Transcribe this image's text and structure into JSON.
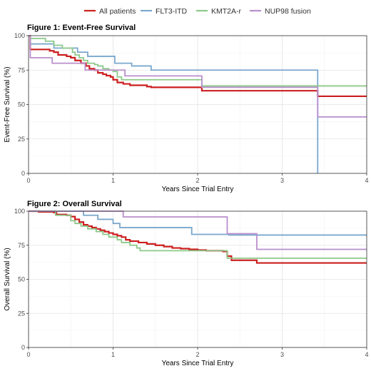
{
  "legend": {
    "placement": "top",
    "items": [
      {
        "label": "All patients",
        "color": "#cc1f1f"
      },
      {
        "label": "FLT3-ITD",
        "color": "#7ba7cc"
      },
      {
        "label": "KMT2A-r",
        "color": "#8cc98a"
      },
      {
        "label": "NUP98 fusion",
        "color": "#b98fcc"
      }
    ]
  },
  "chart_data": [
    {
      "type": "line",
      "step": true,
      "title": "Figure 1: Event-Free Survival",
      "xlabel": "Years Since Trial Entry",
      "ylabel": "Event-Free Survival (%)",
      "xlim": [
        0,
        4
      ],
      "ylim": [
        0,
        100
      ],
      "xticks": [
        0,
        1,
        2,
        3,
        4
      ],
      "yticks": [
        0,
        25,
        50,
        75,
        100
      ],
      "grid": true,
      "series": [
        {
          "name": "All patients",
          "color": "#cc1f1f",
          "points": [
            [
              0,
              100
            ],
            [
              0.02,
              90
            ],
            [
              0.25,
              89
            ],
            [
              0.3,
              88
            ],
            [
              0.35,
              86
            ],
            [
              0.45,
              85
            ],
            [
              0.5,
              84
            ],
            [
              0.55,
              82
            ],
            [
              0.62,
              80
            ],
            [
              0.68,
              78
            ],
            [
              0.72,
              76
            ],
            [
              0.78,
              75
            ],
            [
              0.82,
              73
            ],
            [
              0.88,
              72
            ],
            [
              0.92,
              71
            ],
            [
              0.97,
              70
            ],
            [
              1.0,
              68
            ],
            [
              1.05,
              66
            ],
            [
              1.12,
              65
            ],
            [
              1.2,
              64
            ],
            [
              1.4,
              63
            ],
            [
              1.45,
              62.5
            ],
            [
              2.03,
              62.5
            ],
            [
              2.05,
              60
            ],
            [
              3.4,
              60
            ],
            [
              3.42,
              56
            ],
            [
              4,
              56
            ]
          ]
        },
        {
          "name": "FLT3-ITD",
          "color": "#7ba7cc",
          "points": [
            [
              0,
              100
            ],
            [
              0.02,
              94
            ],
            [
              0.28,
              94
            ],
            [
              0.3,
              91
            ],
            [
              0.55,
              91
            ],
            [
              0.58,
              88
            ],
            [
              0.68,
              88
            ],
            [
              0.7,
              85
            ],
            [
              1.0,
              85
            ],
            [
              1.02,
              80
            ],
            [
              1.2,
              80
            ],
            [
              1.22,
              78
            ],
            [
              1.43,
              78
            ],
            [
              1.45,
              75
            ],
            [
              3.4,
              75
            ],
            [
              3.42,
              0
            ]
          ]
        },
        {
          "name": "KMT2A-r",
          "color": "#8cc98a",
          "points": [
            [
              0,
              100
            ],
            [
              0.02,
              98
            ],
            [
              0.18,
              98
            ],
            [
              0.2,
              96
            ],
            [
              0.28,
              96
            ],
            [
              0.3,
              93
            ],
            [
              0.38,
              93
            ],
            [
              0.4,
              91
            ],
            [
              0.5,
              91
            ],
            [
              0.52,
              88
            ],
            [
              0.55,
              86
            ],
            [
              0.6,
              84
            ],
            [
              0.65,
              82
            ],
            [
              0.7,
              80
            ],
            [
              0.78,
              79
            ],
            [
              0.82,
              78
            ],
            [
              0.88,
              76
            ],
            [
              0.95,
              75
            ],
            [
              1.0,
              74
            ],
            [
              1.05,
              70
            ],
            [
              1.1,
              68
            ],
            [
              2.03,
              68
            ],
            [
              2.05,
              63.5
            ],
            [
              4,
              63.5
            ]
          ]
        },
        {
          "name": "NUP98 fusion",
          "color": "#b98fcc",
          "points": [
            [
              0,
              100
            ],
            [
              0.02,
              84
            ],
            [
              0.26,
              84
            ],
            [
              0.28,
              80
            ],
            [
              0.65,
              80
            ],
            [
              0.67,
              75
            ],
            [
              1.12,
              75
            ],
            [
              1.14,
              70.8
            ],
            [
              2.03,
              70.8
            ],
            [
              2.05,
              62.5
            ],
            [
              3.4,
              62.5
            ],
            [
              3.42,
              41
            ],
            [
              4,
              41
            ]
          ]
        }
      ]
    },
    {
      "type": "line",
      "step": true,
      "title": "Figure 2: Overall Survival",
      "xlabel": "Years Since Trial Entry",
      "ylabel": "Overall Survival (%)",
      "xlim": [
        0,
        4
      ],
      "ylim": [
        0,
        100
      ],
      "xticks": [
        0,
        1,
        2,
        3,
        4
      ],
      "yticks": [
        0,
        25,
        50,
        75,
        100
      ],
      "grid": true,
      "series": [
        {
          "name": "All patients",
          "color": "#cc1f1f",
          "points": [
            [
              0,
              100
            ],
            [
              0.1,
              100
            ],
            [
              0.12,
              99.5
            ],
            [
              0.3,
              99
            ],
            [
              0.33,
              97.5
            ],
            [
              0.45,
              97
            ],
            [
              0.5,
              96
            ],
            [
              0.55,
              94
            ],
            [
              0.6,
              92
            ],
            [
              0.65,
              90
            ],
            [
              0.7,
              89
            ],
            [
              0.75,
              88
            ],
            [
              0.8,
              87
            ],
            [
              0.85,
              86
            ],
            [
              0.9,
              85
            ],
            [
              0.95,
              84
            ],
            [
              1.0,
              83
            ],
            [
              1.05,
              82
            ],
            [
              1.1,
              81
            ],
            [
              1.15,
              79
            ],
            [
              1.2,
              78
            ],
            [
              1.3,
              77
            ],
            [
              1.4,
              76
            ],
            [
              1.5,
              75
            ],
            [
              1.6,
              74
            ],
            [
              1.7,
              73
            ],
            [
              1.8,
              72.5
            ],
            [
              1.9,
              72
            ],
            [
              2.0,
              71.5
            ],
            [
              2.1,
              71
            ],
            [
              2.3,
              70.5
            ],
            [
              2.35,
              67
            ],
            [
              2.4,
              64
            ],
            [
              2.65,
              64
            ],
            [
              2.7,
              62
            ],
            [
              4,
              62
            ]
          ]
        },
        {
          "name": "FLT3-ITD",
          "color": "#7ba7cc",
          "points": [
            [
              0,
              100
            ],
            [
              0.63,
              100
            ],
            [
              0.65,
              97
            ],
            [
              0.8,
              97
            ],
            [
              0.82,
              94
            ],
            [
              0.98,
              94
            ],
            [
              1.0,
              91
            ],
            [
              1.05,
              91
            ],
            [
              1.08,
              88
            ],
            [
              1.9,
              88
            ],
            [
              1.93,
              83
            ],
            [
              2.35,
              83
            ],
            [
              2.37,
              82.5
            ],
            [
              4,
              82.5
            ]
          ]
        },
        {
          "name": "KMT2A-r",
          "color": "#8cc98a",
          "points": [
            [
              0,
              100
            ],
            [
              0.3,
              100
            ],
            [
              0.32,
              97
            ],
            [
              0.48,
              97
            ],
            [
              0.5,
              93
            ],
            [
              0.55,
              91
            ],
            [
              0.62,
              89
            ],
            [
              0.7,
              87
            ],
            [
              0.8,
              85
            ],
            [
              0.88,
              83
            ],
            [
              0.95,
              81
            ],
            [
              1.05,
              79
            ],
            [
              1.1,
              77
            ],
            [
              1.2,
              75
            ],
            [
              1.28,
              73
            ],
            [
              1.32,
              71
            ],
            [
              2.33,
              71
            ],
            [
              2.35,
              65.5
            ],
            [
              4,
              65.5
            ]
          ]
        },
        {
          "name": "NUP98 fusion",
          "color": "#b98fcc",
          "points": [
            [
              0,
              100
            ],
            [
              1.1,
              100
            ],
            [
              1.12,
              95.8
            ],
            [
              2.33,
              95.8
            ],
            [
              2.35,
              83.5
            ],
            [
              2.68,
              83.5
            ],
            [
              2.7,
              72
            ],
            [
              4,
              72
            ]
          ]
        }
      ]
    }
  ]
}
